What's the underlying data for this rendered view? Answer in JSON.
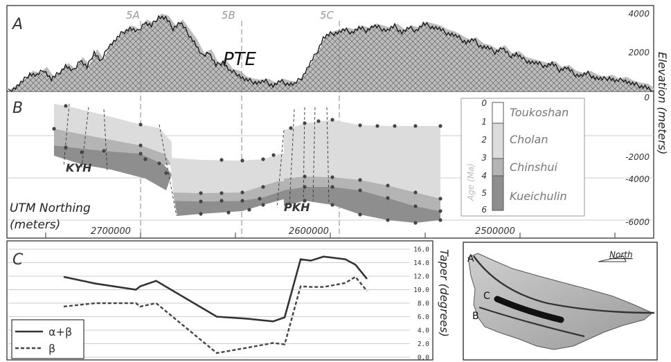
{
  "panel_a": {
    "letter": "A",
    "region_label": "PTE",
    "section_labels": [
      "5A",
      "5B",
      "5C"
    ],
    "right_ticks": [
      "4000",
      "2000",
      "0"
    ],
    "elevation_profile_m": [
      0,
      200,
      500,
      900,
      800,
      1100,
      600,
      900,
      1300,
      1000,
      1600,
      1200,
      2000,
      1500,
      2300,
      2600,
      3000,
      3200,
      3000,
      3500,
      3300,
      3800,
      3700,
      3200,
      3500,
      3000,
      2500,
      1800,
      2000,
      1300,
      1500,
      1000,
      900,
      600,
      500,
      450,
      500,
      300,
      500,
      400,
      350,
      700,
      1300,
      1900,
      2700,
      2900,
      3000,
      3100,
      3000,
      3200,
      3100,
      3300,
      3200,
      3100,
      3300,
      3000,
      3200,
      3100,
      3400,
      3300,
      3200,
      3000,
      2900,
      2700,
      2500,
      2600,
      2300,
      2200,
      2000,
      2200,
      1800,
      1900,
      1600,
      1500,
      1400,
      1300,
      1400,
      1100,
      1200,
      900,
      800,
      900,
      700,
      600,
      700,
      500,
      600,
      400,
      300,
      250,
      0
    ]
  },
  "panel_b": {
    "letter": "B",
    "axis_title_top": "UTM Northing",
    "axis_title_bottom": "(meters)",
    "northing_ticks": [
      "2700000",
      "2600000",
      "2500000"
    ],
    "right_ticks": [
      "-2000",
      "-4000",
      "-6000"
    ],
    "right_axis_title": "Elevation  (meters)",
    "labels": [
      "KYH",
      "PKH"
    ],
    "legend": {
      "axis_label": "Age (Ma)",
      "ages": [
        "0",
        "1",
        "2",
        "3",
        "4",
        "5",
        "6"
      ],
      "units": [
        {
          "name": "Toukoshan",
          "color": "#ffffff"
        },
        {
          "name": "Cholan",
          "color": "#dcdcdc"
        },
        {
          "name": "Chinshui",
          "color": "#b4b4b4"
        },
        {
          "name": "Kueichulin",
          "color": "#8e8e8e"
        }
      ]
    }
  },
  "panel_c": {
    "letter": "C",
    "right_axis_title": "Taper (degrees)",
    "legend": [
      {
        "key": "solid",
        "label": "α+β"
      },
      {
        "key": "dashed",
        "label": "β"
      }
    ]
  },
  "map": {
    "labels": [
      "A",
      "B",
      "C"
    ],
    "north_label": "North"
  },
  "chart_data": {
    "type": "line",
    "xlabel": "",
    "ylabel": "Taper (degrees)",
    "ylim": [
      0,
      16
    ],
    "yticks": [
      "0.0",
      "2.0",
      "4.0",
      "6.0",
      "8.0",
      "10.0",
      "12.0",
      "14.0",
      "16.0"
    ],
    "x": [
      0,
      1,
      2,
      3,
      4,
      5,
      6,
      7,
      8,
      9,
      10,
      11,
      12,
      13,
      14
    ],
    "series": [
      {
        "name": "α+β",
        "values": [
          11.9,
          10.9,
          10.0,
          10.5,
          11.3,
          6.0,
          5.7,
          5.3,
          5.9,
          14.5,
          14.3,
          14.9,
          14.5,
          13.7,
          11.6
        ]
      },
      {
        "name": "β",
        "values": [
          7.5,
          8.0,
          8.0,
          7.5,
          8.0,
          0.6,
          1.4,
          2.1,
          1.9,
          10.5,
          10.4,
          10.4,
          11.0,
          11.9,
          9.8
        ]
      }
    ]
  }
}
